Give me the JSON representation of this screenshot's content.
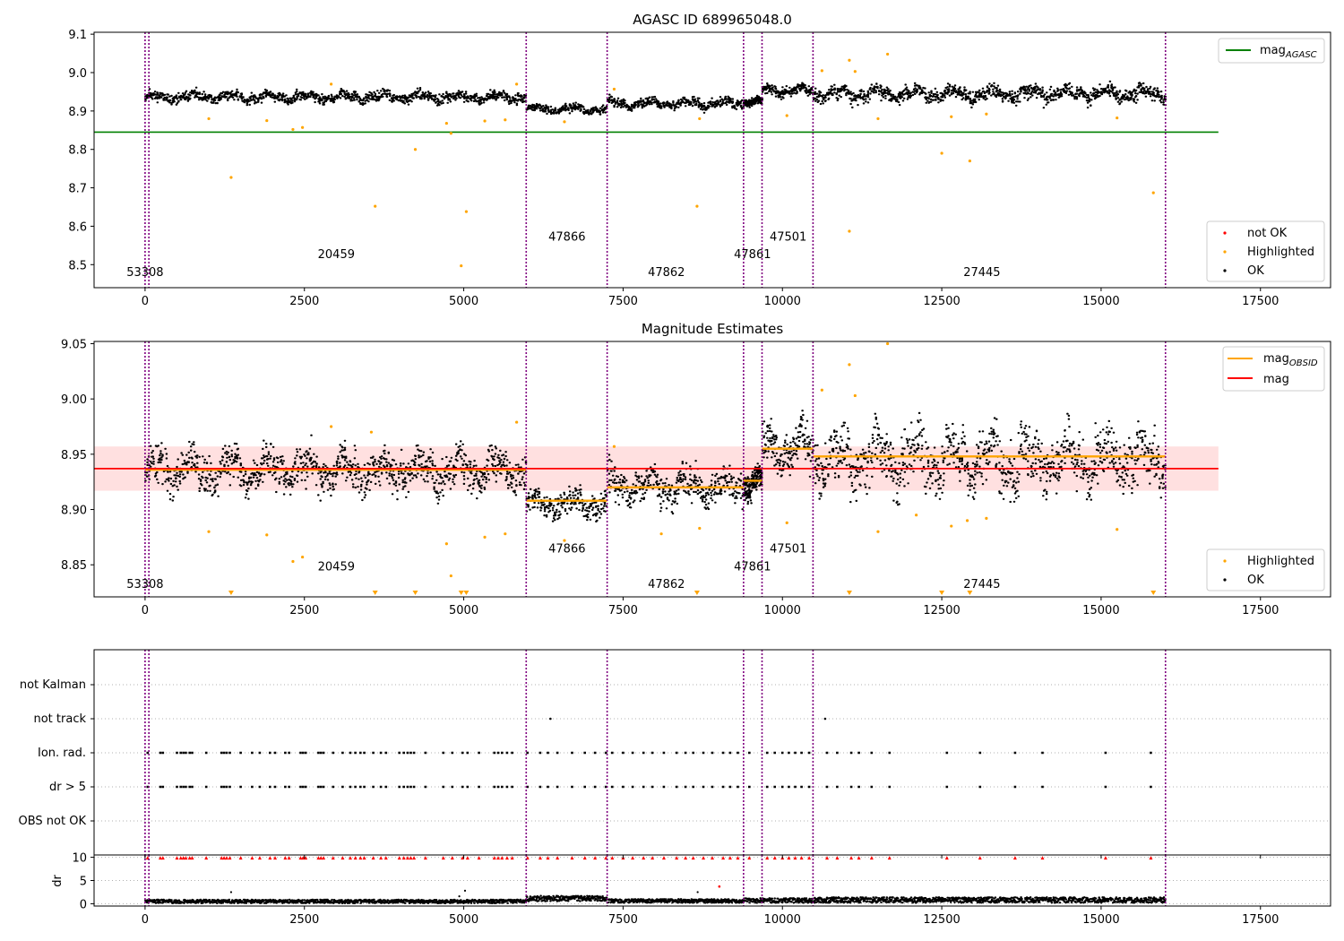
{
  "chart_data": [
    {
      "type": "scatter",
      "title": "AGASC ID 689965048.0",
      "xlim": [
        -800,
        18600
      ],
      "ylim": [
        8.44,
        9.105
      ],
      "xticks": [
        0,
        2500,
        5000,
        7500,
        10000,
        12500,
        15000,
        17500
      ],
      "yticks": [
        8.5,
        8.6,
        8.7,
        8.8,
        8.9,
        9.0,
        9.1
      ],
      "ytick_labels": [
        "8.5",
        "8.6",
        "8.7",
        "8.8",
        "8.9",
        "9.0",
        "9.1"
      ],
      "grid": false,
      "vlines": [
        0,
        60,
        5980,
        7250,
        9390,
        9680,
        10480,
        16010
      ],
      "obsid_labels": [
        {
          "text": "53308",
          "x": 0,
          "y": 8.47
        },
        {
          "text": "20459",
          "x": 3000,
          "y": 8.517
        },
        {
          "text": "47866",
          "x": 6620,
          "y": 8.563
        },
        {
          "text": "47862",
          "x": 8180,
          "y": 8.47
        },
        {
          "text": "47861",
          "x": 9530,
          "y": 8.517
        },
        {
          "text": "47501",
          "x": 10090,
          "y": 8.563
        },
        {
          "text": "27445",
          "x": 13130,
          "y": 8.47
        }
      ],
      "hlines": [
        {
          "name": "mag_AGASC",
          "y": 8.845,
          "x": [
            -800,
            16840
          ],
          "color": "#008000"
        }
      ],
      "segments": [
        {
          "x": [
            0,
            5980
          ],
          "mean": 8.936,
          "amp": 0.014
        },
        {
          "x": [
            5980,
            7250
          ],
          "mean": 8.905,
          "amp": 0.011
        },
        {
          "x": [
            7250,
            9390
          ],
          "mean": 8.92,
          "amp": 0.013
        },
        {
          "x": [
            9390,
            9680
          ],
          "mean": 8.925,
          "amp": 0.01
        },
        {
          "x": [
            9680,
            10480
          ],
          "mean": 8.953,
          "amp": 0.014
        },
        {
          "x": [
            10480,
            16010
          ],
          "mean": 8.945,
          "amp": 0.02
        }
      ],
      "highlighted_points": [
        [
          1000,
          8.88
        ],
        [
          1350,
          8.727
        ],
        [
          1910,
          8.875
        ],
        [
          2320,
          8.852
        ],
        [
          2470,
          8.857
        ],
        [
          2920,
          8.97
        ],
        [
          3610,
          8.652
        ],
        [
          4240,
          8.8
        ],
        [
          4730,
          8.868
        ],
        [
          4800,
          8.842
        ],
        [
          4960,
          8.497
        ],
        [
          5040,
          8.638
        ],
        [
          5330,
          8.874
        ],
        [
          5650,
          8.877
        ],
        [
          5830,
          8.97
        ],
        [
          6580,
          8.872
        ],
        [
          7360,
          8.957
        ],
        [
          8660,
          8.652
        ],
        [
          8700,
          8.88
        ],
        [
          10070,
          8.888
        ],
        [
          10620,
          9.005
        ],
        [
          11050,
          9.032
        ],
        [
          11050,
          8.587
        ],
        [
          11140,
          9.003
        ],
        [
          11650,
          9.048
        ],
        [
          11500,
          8.88
        ],
        [
          12500,
          8.79
        ],
        [
          12940,
          8.77
        ],
        [
          15820,
          8.687
        ],
        [
          15250,
          8.882
        ],
        [
          12650,
          8.885
        ],
        [
          13200,
          8.892
        ]
      ],
      "legend_lines": [
        "mag_AGASC"
      ],
      "legend_points": [
        {
          "label": "not OK",
          "color": "#ff0000"
        },
        {
          "label": "Highlighted",
          "color": "#ffa500"
        },
        {
          "label": "OK",
          "color": "#000000"
        }
      ],
      "legend_placement": [
        "top-right",
        "bottom-right"
      ]
    },
    {
      "type": "scatter",
      "title": "Magnitude Estimates",
      "xlim": [
        -800,
        18600
      ],
      "ylim": [
        8.821,
        9.052
      ],
      "xticks": [
        0,
        2500,
        5000,
        7500,
        10000,
        12500,
        15000,
        17500
      ],
      "yticks": [
        8.85,
        8.9,
        8.95,
        9.0,
        9.05
      ],
      "ytick_labels": [
        "8.85",
        "8.90",
        "8.95",
        "9.00",
        "9.05"
      ],
      "grid": false,
      "vlines": [
        0,
        60,
        5980,
        7250,
        9390,
        9680,
        10480,
        16010
      ],
      "obsid_labels": [
        {
          "text": "53308",
          "x": 0,
          "y": 8.829
        },
        {
          "text": "20459",
          "x": 3000,
          "y": 8.845
        },
        {
          "text": "47866",
          "x": 6620,
          "y": 8.861
        },
        {
          "text": "47862",
          "x": 8180,
          "y": 8.829
        },
        {
          "text": "47861",
          "x": 9530,
          "y": 8.845
        },
        {
          "text": "47501",
          "x": 10090,
          "y": 8.861
        },
        {
          "text": "27445",
          "x": 13130,
          "y": 8.829
        }
      ],
      "mag_line": {
        "name": "mag",
        "y": 8.937,
        "x": [
          -800,
          16840
        ],
        "band": [
          8.917,
          8.957
        ],
        "color": "#ff0000"
      },
      "mag_obsid": [
        {
          "x": [
            0,
            5980
          ],
          "y": 8.936
        },
        {
          "x": [
            5980,
            7250
          ],
          "y": 8.908
        },
        {
          "x": [
            7250,
            9390
          ],
          "y": 8.92
        },
        {
          "x": [
            9390,
            9680
          ],
          "y": 8.926
        },
        {
          "x": [
            9680,
            10480
          ],
          "y": 8.955
        },
        {
          "x": [
            10480,
            16010
          ],
          "y": 8.948
        }
      ],
      "segments": [
        {
          "x": [
            0,
            5980
          ],
          "mean": 8.936,
          "amp": 0.018
        },
        {
          "x": [
            5980,
            7250
          ],
          "mean": 8.905,
          "amp": 0.012
        },
        {
          "x": [
            7250,
            9390
          ],
          "mean": 8.92,
          "amp": 0.016
        },
        {
          "x": [
            9390,
            9680
          ],
          "mean": 8.925,
          "amp": 0.012
        },
        {
          "x": [
            9680,
            10480
          ],
          "mean": 8.955,
          "amp": 0.02
        },
        {
          "x": [
            10480,
            16010
          ],
          "mean": 8.945,
          "amp": 0.026
        }
      ],
      "highlighted_points": [
        [
          1000,
          8.88
        ],
        [
          1910,
          8.877
        ],
        [
          2320,
          8.853
        ],
        [
          2470,
          8.857
        ],
        [
          2920,
          8.975
        ],
        [
          3550,
          8.97
        ],
        [
          4730,
          8.869
        ],
        [
          4800,
          8.84
        ],
        [
          5330,
          8.875
        ],
        [
          5650,
          8.878
        ],
        [
          5830,
          8.979
        ],
        [
          6580,
          8.872
        ],
        [
          7360,
          8.957
        ],
        [
          8700,
          8.883
        ],
        [
          8100,
          8.878
        ],
        [
          10070,
          8.888
        ],
        [
          10620,
          9.008
        ],
        [
          11050,
          9.031
        ],
        [
          11140,
          9.003
        ],
        [
          11650,
          9.05
        ],
        [
          11500,
          8.88
        ],
        [
          12650,
          8.885
        ],
        [
          13200,
          8.892
        ],
        [
          15250,
          8.882
        ],
        [
          12100,
          8.895
        ],
        [
          12900,
          8.89
        ]
      ],
      "clipped_markers_x": [
        1350,
        3610,
        4240,
        4960,
        5040,
        8660,
        11050,
        12500,
        12940,
        15820
      ],
      "legend_lines": [
        "mag_OBSID",
        "mag"
      ],
      "legend_points": [
        {
          "label": "Highlighted",
          "color": "#ffa500"
        },
        {
          "label": "OK",
          "color": "#000000"
        }
      ],
      "legend_placement": [
        "top-right",
        "bottom-right"
      ]
    },
    {
      "type": "scatter",
      "title": "",
      "xlim": [
        -800,
        18600
      ],
      "categories": [
        "not Kalman",
        "not track",
        "Ion. rad.",
        "dr > 5",
        "OBS not OK"
      ],
      "grid": true,
      "vlines": [
        0,
        60,
        5980,
        7250,
        9390,
        9680,
        10480,
        16010
      ],
      "flag_x": [
        40,
        240,
        280,
        500,
        560,
        600,
        640,
        700,
        740,
        960,
        1200,
        1240,
        1280,
        1330,
        1500,
        1680,
        1800,
        1960,
        2040,
        2200,
        2260,
        2440,
        2480,
        2520,
        2720,
        2760,
        2800,
        2950,
        3100,
        3220,
        3300,
        3380,
        3440,
        3580,
        3700,
        3780,
        3990,
        4060,
        4120,
        4170,
        4220,
        4400,
        4680,
        4820,
        4980,
        5060,
        5240,
        5480,
        5540,
        5600,
        5680,
        5760,
        6000,
        6200,
        6320,
        6470,
        6700,
        6900,
        7060,
        7230,
        7330,
        7500,
        7650,
        7820,
        7960,
        8140,
        8340,
        8480,
        8600,
        8760,
        8900,
        9070,
        9180,
        9300,
        9480,
        9760,
        9880,
        10000,
        10100,
        10200,
        10300,
        10420,
        10700,
        10860,
        11080,
        11200,
        11400,
        11680,
        12580,
        13100,
        13650,
        14080,
        15070,
        15780
      ],
      "not_track_x": [
        6360,
        10670
      ]
    },
    {
      "type": "scatter",
      "ylabel": "dr",
      "xlim": [
        -800,
        18600
      ],
      "ylim": [
        -0.5,
        10.5
      ],
      "yticks": [
        0,
        5,
        10
      ],
      "ytick_labels": [
        "0",
        "5",
        "10"
      ],
      "xticks": [
        0,
        2500,
        5000,
        7500,
        10000,
        12500,
        15000,
        17500
      ],
      "grid": true,
      "vlines": [
        0,
        60,
        5980,
        7250,
        9390,
        9680,
        10480,
        16010
      ],
      "dr_segments": [
        {
          "x": [
            0,
            5980
          ],
          "mean": 0.5,
          "amp": 0.4
        },
        {
          "x": [
            5980,
            7250
          ],
          "mean": 1.1,
          "amp": 0.6
        },
        {
          "x": [
            7250,
            9390
          ],
          "mean": 0.6,
          "amp": 0.4
        },
        {
          "x": [
            9390,
            10480
          ],
          "mean": 0.7,
          "amp": 0.5
        },
        {
          "x": [
            10480,
            16010
          ],
          "mean": 0.8,
          "amp": 0.6
        }
      ],
      "dr_outliers": [
        [
          1350,
          2.5
        ],
        [
          5020,
          2.8
        ],
        [
          8670,
          2.5
        ],
        [
          9010,
          3.7
        ],
        [
          4930,
          1.6
        ]
      ],
      "clipped_dr_y": 9.5
    }
  ],
  "colors": {
    "ok": "#000000",
    "highlighted": "#ffa500",
    "not_ok": "#ff0000",
    "mag_agasc": "#008000",
    "mag": "#ff0000",
    "mag_obsid": "#ffa500",
    "band": "#ffcccc",
    "vline": "#800080"
  },
  "legends": {
    "top1": {
      "mag_AGASC": "mag"
    },
    "top2": {
      "mag_OBSID": "mag",
      "mag": "mag"
    },
    "subscripts": {
      "agasc": "AGASC",
      "obsid": "OBSID"
    }
  }
}
